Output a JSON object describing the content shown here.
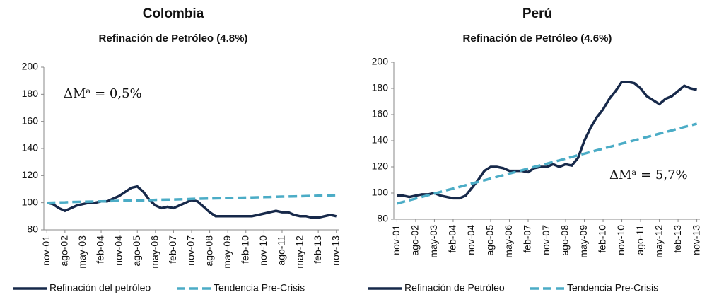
{
  "chart_data": [
    {
      "type": "line",
      "title": "Colombia",
      "subtitle": "Refinación de Petróleo (4.8%)",
      "annotation": "ΔMᵃ = 0,5%",
      "categories": [
        "nov-01",
        null,
        null,
        "ago-02",
        null,
        null,
        "may-03",
        null,
        null,
        "feb-04",
        null,
        null,
        "nov-04",
        null,
        null,
        "ago-05",
        null,
        null,
        "may-06",
        null,
        null,
        "feb-07",
        null,
        null,
        "nov-07",
        null,
        null,
        "ago-08",
        null,
        null,
        "may-09",
        null,
        null,
        "feb-10",
        null,
        null,
        "nov-10",
        null,
        null,
        "ago-11",
        null,
        null,
        "may-12",
        null,
        null,
        "feb-13",
        null,
        null,
        "nov-13"
      ],
      "series": [
        {
          "name": "Refinación del petróleo",
          "color": "#17294a",
          "values": [
            100,
            99,
            96,
            94,
            96,
            98,
            99,
            100,
            100,
            101,
            101,
            103,
            105,
            108,
            111,
            112,
            108,
            102,
            98,
            96,
            97,
            96,
            98,
            100,
            102,
            101,
            97,
            93,
            90,
            90,
            90,
            90,
            90,
            90,
            90,
            91,
            92,
            93,
            94,
            93,
            93,
            91,
            90,
            90,
            89,
            89,
            90,
            91,
            90
          ]
        },
        {
          "name": "Tendencia Pre-Crisis",
          "color": "#4bacc6",
          "dashed": true,
          "values": [
            100,
            100.1,
            100.2,
            100.3,
            100.5,
            100.6,
            100.7,
            100.8,
            100.9,
            101.0,
            101.1,
            101.3,
            101.4,
            101.5,
            101.6,
            101.7,
            101.8,
            101.9,
            102.1,
            102.2,
            102.3,
            102.4,
            102.5,
            102.6,
            102.8,
            102.9,
            103.0,
            103.1,
            103.2,
            103.3,
            103.4,
            103.6,
            103.7,
            103.8,
            103.9,
            104.0,
            104.1,
            104.2,
            104.4,
            104.5,
            104.6,
            104.7,
            104.8,
            104.9,
            105.0,
            105.2,
            105.3,
            105.4,
            105.5
          ]
        }
      ],
      "ylim": [
        80,
        200
      ],
      "yticks": [
        80,
        100,
        120,
        140,
        160,
        180,
        200
      ],
      "grid": false,
      "legend": "bottom"
    },
    {
      "type": "line",
      "title": "Perú",
      "subtitle": "Refinación de Petróleo (4.6%)",
      "annotation": "ΔMᵃ = 5,7%",
      "categories": [
        "nov-01",
        null,
        null,
        "ago-02",
        null,
        null,
        "may-03",
        null,
        null,
        "feb-04",
        null,
        null,
        "nov-04",
        null,
        null,
        "ago-05",
        null,
        null,
        "may-06",
        null,
        null,
        "feb-07",
        null,
        null,
        "nov-07",
        null,
        null,
        "ago-08",
        null,
        null,
        "may-09",
        null,
        null,
        "feb-10",
        null,
        null,
        "nov-10",
        null,
        null,
        "ago-11",
        null,
        null,
        "may-12",
        null,
        null,
        "feb-13",
        null,
        null,
        "nov-13"
      ],
      "series": [
        {
          "name": "Refinación de Petróleo",
          "color": "#17294a",
          "values": [
            98,
            98,
            97,
            98,
            99,
            99,
            100,
            98,
            97,
            96,
            96,
            98,
            104,
            110,
            117,
            120,
            120,
            119,
            117,
            117,
            117,
            116,
            119,
            120,
            120,
            122,
            120,
            122,
            121,
            127,
            140,
            150,
            158,
            164,
            172,
            178,
            185,
            185,
            184,
            180,
            174,
            171,
            168,
            172,
            174,
            178,
            182,
            180,
            179
          ]
        },
        {
          "name": "Tendencia Pre-Crisis",
          "color": "#4bacc6",
          "dashed": true,
          "values": [
            92,
            93.3,
            94.5,
            95.8,
            97.1,
            98.4,
            99.6,
            100.9,
            102.2,
            103.4,
            104.7,
            106.0,
            107.3,
            108.5,
            109.8,
            111.1,
            112.3,
            113.6,
            114.9,
            116.1,
            117.4,
            118.7,
            120.0,
            121.2,
            122.5,
            123.8,
            125.0,
            126.3,
            127.6,
            128.9,
            130.1,
            131.4,
            132.7,
            133.9,
            135.2,
            136.5,
            137.8,
            139.0,
            140.3,
            141.6,
            142.8,
            144.1,
            145.4,
            146.6,
            147.9,
            149.2,
            150.5,
            151.7,
            153
          ]
        }
      ],
      "ylim": [
        80,
        200
      ],
      "yticks": [
        80,
        100,
        120,
        140,
        160,
        180,
        200
      ],
      "grid": false,
      "legend": "bottom"
    }
  ]
}
